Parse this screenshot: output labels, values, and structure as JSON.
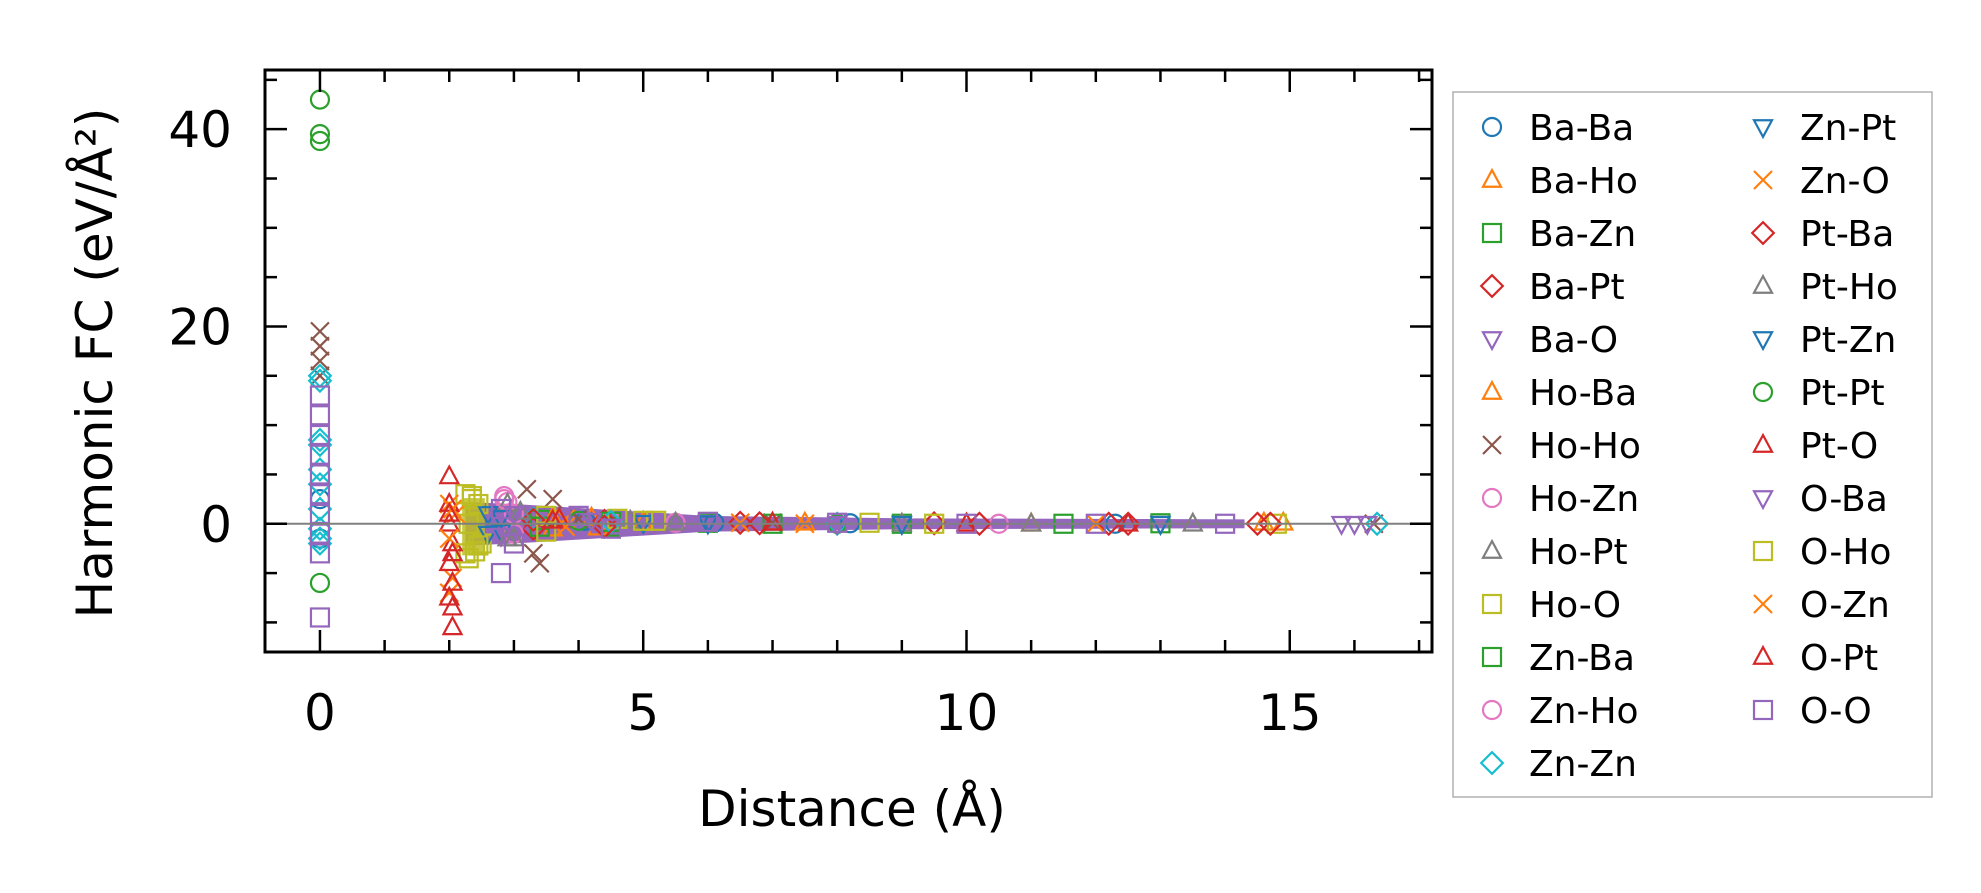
{
  "chart_data": {
    "type": "scatter",
    "title": "",
    "xlabel": "Distance (Å)",
    "ylabel": "Harmonic FC (eV/Å²)",
    "xlim": [
      -0.85,
      17.2
    ],
    "ylim": [
      -13,
      46
    ],
    "xticks": [
      0,
      5,
      10,
      15
    ],
    "yticks": [
      0,
      20,
      40
    ],
    "xtick_labels": [
      "0",
      "5",
      "10",
      "15"
    ],
    "ytick_labels": [
      "0",
      "20",
      "40"
    ],
    "zero_line": true,
    "legend_position": "right, outside plot",
    "series": [
      {
        "name": "Ba-Ba",
        "marker": "circle",
        "color": "#1f77b4",
        "points": [
          [
            0,
            2.5
          ],
          [
            0,
            -1.5
          ],
          [
            4.1,
            0.3
          ],
          [
            6.1,
            0.1
          ],
          [
            8.2,
            0.05
          ],
          [
            12.3,
            0.0
          ]
        ]
      },
      {
        "name": "Ba-Ho",
        "marker": "triangle-up",
        "color": "#ff7f0e",
        "points": [
          [
            3.6,
            -0.5
          ],
          [
            4.2,
            0.6
          ],
          [
            5.0,
            0.2
          ],
          [
            7.0,
            0.1
          ],
          [
            10.0,
            0.0
          ],
          [
            14.6,
            0.1
          ]
        ]
      },
      {
        "name": "Ba-Zn",
        "marker": "square",
        "color": "#2ca02c",
        "points": [
          [
            3.4,
            0.4
          ],
          [
            4.5,
            -0.3
          ],
          [
            6.0,
            0.1
          ],
          [
            9.0,
            0.0
          ],
          [
            13.0,
            0.05
          ]
        ]
      },
      {
        "name": "Ba-Pt",
        "marker": "diamond",
        "color": "#d62728",
        "points": [
          [
            3.3,
            -0.5
          ],
          [
            4.4,
            0.3
          ],
          [
            6.5,
            0.1
          ],
          [
            9.5,
            0.05
          ],
          [
            12.2,
            0.0
          ],
          [
            14.5,
            0.0
          ]
        ]
      },
      {
        "name": "Ba-O",
        "marker": "triangle-down",
        "color": "#9467bd",
        "points": [
          [
            2.8,
            1.2
          ],
          [
            3.0,
            -1.0
          ],
          [
            4.0,
            0.4
          ],
          [
            6.0,
            0.1
          ],
          [
            9.0,
            0.0
          ],
          [
            13.0,
            0.0
          ]
        ]
      },
      {
        "name": "Ho-Ba",
        "marker": "triangle-up",
        "color": "#ff7f0e",
        "points": [
          [
            3.6,
            0.6
          ],
          [
            4.3,
            -0.4
          ],
          [
            7.5,
            0.1
          ],
          [
            11.0,
            0.0
          ],
          [
            14.9,
            0.1
          ]
        ]
      },
      {
        "name": "Ho-Ho",
        "marker": "x",
        "color": "#8c564b",
        "points": [
          [
            0,
            19.5
          ],
          [
            0,
            18.0
          ],
          [
            0,
            16.5
          ],
          [
            0,
            15.0
          ],
          [
            3.2,
            3.5
          ],
          [
            3.4,
            -4.0
          ],
          [
            3.6,
            2.5
          ],
          [
            3.3,
            -3.0
          ],
          [
            4.0,
            0.5
          ],
          [
            7.0,
            0.1
          ],
          [
            16.3,
            0.0
          ]
        ]
      },
      {
        "name": "Ho-Zn",
        "marker": "circle",
        "color": "#e377c2",
        "points": [
          [
            2.85,
            2.8
          ],
          [
            2.9,
            2.2
          ],
          [
            3.0,
            -1.0
          ],
          [
            4.5,
            0.3
          ],
          [
            8.0,
            0.0
          ]
        ]
      },
      {
        "name": "Ho-Pt",
        "marker": "triangle-up",
        "color": "#7f7f7f",
        "points": [
          [
            2.9,
            2.0
          ],
          [
            3.0,
            -1.5
          ],
          [
            4.8,
            0.3
          ],
          [
            9.0,
            0.0
          ],
          [
            13.5,
            0.0
          ]
        ]
      },
      {
        "name": "Ho-O",
        "marker": "square",
        "color": "#bcbd22",
        "points": [
          [
            2.25,
            3.0
          ],
          [
            2.3,
            -3.5
          ],
          [
            2.35,
            2.5
          ],
          [
            2.4,
            -2.8
          ],
          [
            2.45,
            2.0
          ],
          [
            2.5,
            -2.0
          ],
          [
            2.3,
            0.0
          ],
          [
            3.5,
            0.8
          ],
          [
            4.6,
            0.5
          ],
          [
            5.2,
            0.3
          ],
          [
            8.5,
            0.1
          ],
          [
            14.8,
            0.0
          ]
        ]
      },
      {
        "name": "Zn-Ba",
        "marker": "square",
        "color": "#2ca02c",
        "points": [
          [
            3.4,
            -0.3
          ],
          [
            4.5,
            0.2
          ],
          [
            7.0,
            0.0
          ],
          [
            11.5,
            0.0
          ]
        ]
      },
      {
        "name": "Zn-Ho",
        "marker": "circle",
        "color": "#e377c2",
        "points": [
          [
            2.85,
            2.5
          ],
          [
            3.0,
            1.0
          ],
          [
            5.5,
            0.1
          ],
          [
            10.5,
            0.0
          ]
        ]
      },
      {
        "name": "Zn-Zn",
        "marker": "diamond",
        "color": "#17becf",
        "points": [
          [
            0,
            15.0
          ],
          [
            0,
            14.5
          ],
          [
            0,
            8.5
          ],
          [
            0,
            8.0
          ],
          [
            0,
            5.5
          ],
          [
            0,
            4.0
          ],
          [
            0,
            1.5
          ],
          [
            0,
            -0.5
          ],
          [
            0,
            -1.5
          ],
          [
            0,
            -2.0
          ],
          [
            3.3,
            0.5
          ],
          [
            4.5,
            0.2
          ],
          [
            8.0,
            0.0
          ],
          [
            16.35,
            0.0
          ]
        ]
      },
      {
        "name": "Zn-Pt",
        "marker": "triangle-down",
        "color": "#1f77b4",
        "points": [
          [
            2.6,
            1.0
          ],
          [
            2.8,
            -0.8
          ],
          [
            5.0,
            0.1
          ],
          [
            9.0,
            0.0
          ]
        ]
      },
      {
        "name": "Zn-O",
        "marker": "x",
        "color": "#ff7f0e",
        "points": [
          [
            2.0,
            2.0
          ],
          [
            2.0,
            -7.0
          ],
          [
            2.05,
            -5.5
          ],
          [
            2.1,
            1.0
          ],
          [
            3.8,
            0.5
          ],
          [
            6.5,
            0.1
          ],
          [
            12.0,
            0.0
          ]
        ]
      },
      {
        "name": "Pt-Ba",
        "marker": "diamond",
        "color": "#d62728",
        "points": [
          [
            3.3,
            0.4
          ],
          [
            4.4,
            -0.3
          ],
          [
            6.8,
            0.05
          ],
          [
            10.2,
            0.0
          ],
          [
            12.5,
            0.0
          ],
          [
            14.7,
            0.0
          ]
        ]
      },
      {
        "name": "Pt-Ho",
        "marker": "triangle-up",
        "color": "#7f7f7f",
        "points": [
          [
            2.9,
            -1.5
          ],
          [
            3.1,
            1.2
          ],
          [
            5.5,
            0.1
          ],
          [
            11.0,
            0.0
          ]
        ]
      },
      {
        "name": "Pt-Zn",
        "marker": "triangle-down",
        "color": "#1f77b4",
        "points": [
          [
            2.6,
            -1.0
          ],
          [
            2.8,
            0.6
          ],
          [
            6.0,
            0.05
          ],
          [
            13.0,
            0.0
          ]
        ]
      },
      {
        "name": "Pt-Pt",
        "marker": "circle",
        "color": "#2ca02c",
        "points": [
          [
            0,
            43.0
          ],
          [
            0,
            39.5
          ],
          [
            0,
            38.8
          ],
          [
            0,
            -6.0
          ],
          [
            4.0,
            0.3
          ],
          [
            8.0,
            0.0
          ]
        ]
      },
      {
        "name": "Pt-O",
        "marker": "triangle-up",
        "color": "#d62728",
        "points": [
          [
            2.0,
            4.8
          ],
          [
            2.0,
            2.0
          ],
          [
            2.0,
            0.0
          ],
          [
            2.05,
            -2.0
          ],
          [
            2.0,
            -4.0
          ],
          [
            2.05,
            -6.0
          ],
          [
            2.0,
            -7.5
          ],
          [
            2.05,
            -8.5
          ],
          [
            2.05,
            -10.5
          ],
          [
            3.7,
            0.5
          ],
          [
            7.0,
            0.1
          ],
          [
            12.5,
            0.0
          ]
        ]
      },
      {
        "name": "O-Ba",
        "marker": "triangle-down",
        "color": "#9467bd",
        "points": [
          [
            2.8,
            -1.2
          ],
          [
            3.0,
            1.0
          ],
          [
            4.2,
            0.3
          ],
          [
            8.0,
            0.0
          ],
          [
            15.8,
            0.0
          ],
          [
            16.0,
            0.0
          ],
          [
            16.2,
            0.0
          ]
        ]
      },
      {
        "name": "O-Ho",
        "marker": "square",
        "color": "#bcbd22",
        "points": [
          [
            2.25,
            -3.0
          ],
          [
            2.35,
            2.8
          ],
          [
            2.45,
            -2.2
          ],
          [
            3.5,
            -0.8
          ],
          [
            5.0,
            0.3
          ],
          [
            9.5,
            0.0
          ]
        ]
      },
      {
        "name": "O-Zn",
        "marker": "x",
        "color": "#ff7f0e",
        "points": [
          [
            2.0,
            -1.5
          ],
          [
            2.05,
            1.5
          ],
          [
            3.8,
            -0.3
          ],
          [
            7.5,
            0.0
          ]
        ]
      },
      {
        "name": "O-Pt",
        "marker": "triangle-up",
        "color": "#d62728",
        "points": [
          [
            2.0,
            1.0
          ],
          [
            2.05,
            -3.0
          ],
          [
            3.6,
            0.3
          ],
          [
            10.0,
            0.0
          ]
        ]
      },
      {
        "name": "O-O",
        "marker": "square",
        "color": "#9467bd",
        "points": [
          [
            0,
            13.0
          ],
          [
            0,
            11.0
          ],
          [
            0,
            9.0
          ],
          [
            0,
            7.0
          ],
          [
            0,
            5.0
          ],
          [
            0,
            3.0
          ],
          [
            0,
            1.0
          ],
          [
            0,
            -1.0
          ],
          [
            0,
            -3.0
          ],
          [
            0,
            -9.5
          ],
          [
            2.8,
            -5.0
          ],
          [
            2.8,
            1.5
          ],
          [
            3.0,
            -2.0
          ],
          [
            4.0,
            0.8
          ],
          [
            4.5,
            -0.5
          ],
          [
            6.0,
            0.2
          ],
          [
            8.0,
            0.1
          ],
          [
            10.0,
            0.0
          ],
          [
            12.0,
            0.0
          ],
          [
            14.0,
            0.0
          ]
        ]
      }
    ]
  },
  "colors": {
    "axis": "#000000",
    "zero_line": "#808080",
    "legend_border": "#b0b0b0"
  }
}
